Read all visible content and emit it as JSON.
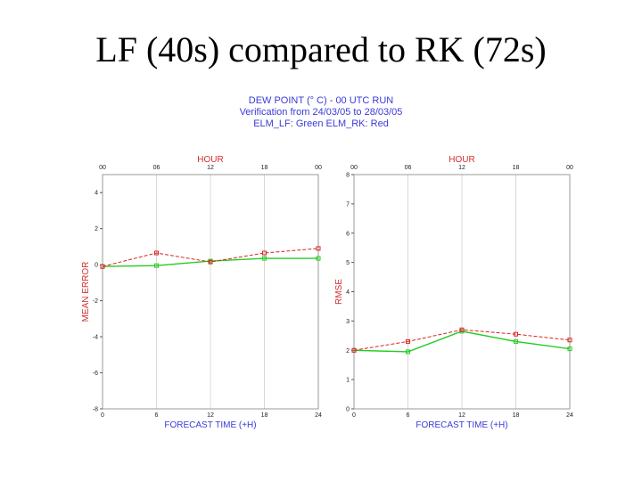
{
  "slide": {
    "title": "LF (40s) compared to RK (72s)"
  },
  "header": {
    "line1": "DEW POINT (° C) - 00 UTC RUN",
    "line2": "Verification from 24/03/05 to 28/03/05",
    "line3": "ELM_LF: Green   ELM_RK: Red"
  },
  "colors": {
    "lf": "#22cc22",
    "rk": "#dd2222",
    "label_red": "#d03030",
    "label_blue": "#3a3ad8"
  },
  "chart_data": [
    {
      "type": "line",
      "title": "",
      "top_label": "HOUR",
      "top_ticks": [
        "00",
        "06",
        "12",
        "18",
        "00"
      ],
      "xlabel": "FORECAST TIME (+H)",
      "ylabel": "MEAN ERROR",
      "x": [
        0,
        6,
        12,
        18,
        24
      ],
      "xlim": [
        0,
        24
      ],
      "ylim": [
        -8,
        5
      ],
      "yticks": [
        4,
        2,
        0,
        -2,
        -4,
        -6,
        -8
      ],
      "series": [
        {
          "name": "ELM_LF",
          "color": "green",
          "values": [
            -0.1,
            -0.05,
            0.2,
            0.35,
            0.35
          ]
        },
        {
          "name": "ELM_RK",
          "color": "red",
          "values": [
            -0.1,
            0.65,
            0.15,
            0.65,
            0.9
          ]
        }
      ]
    },
    {
      "type": "line",
      "title": "",
      "top_label": "HOUR",
      "top_ticks": [
        "00",
        "06",
        "12",
        "18",
        "00"
      ],
      "xlabel": "FORECAST TIME (+H)",
      "ylabel": "RMSE",
      "x": [
        0,
        6,
        12,
        18,
        24
      ],
      "xlim": [
        0,
        24
      ],
      "ylim": [
        0,
        8
      ],
      "yticks": [
        8,
        7,
        6,
        5,
        4,
        3,
        2,
        1,
        0
      ],
      "series": [
        {
          "name": "ELM_LF",
          "color": "green",
          "values": [
            2.0,
            1.95,
            2.65,
            2.3,
            2.05
          ]
        },
        {
          "name": "ELM_RK",
          "color": "red",
          "values": [
            2.0,
            2.3,
            2.7,
            2.55,
            2.35
          ]
        }
      ]
    }
  ]
}
